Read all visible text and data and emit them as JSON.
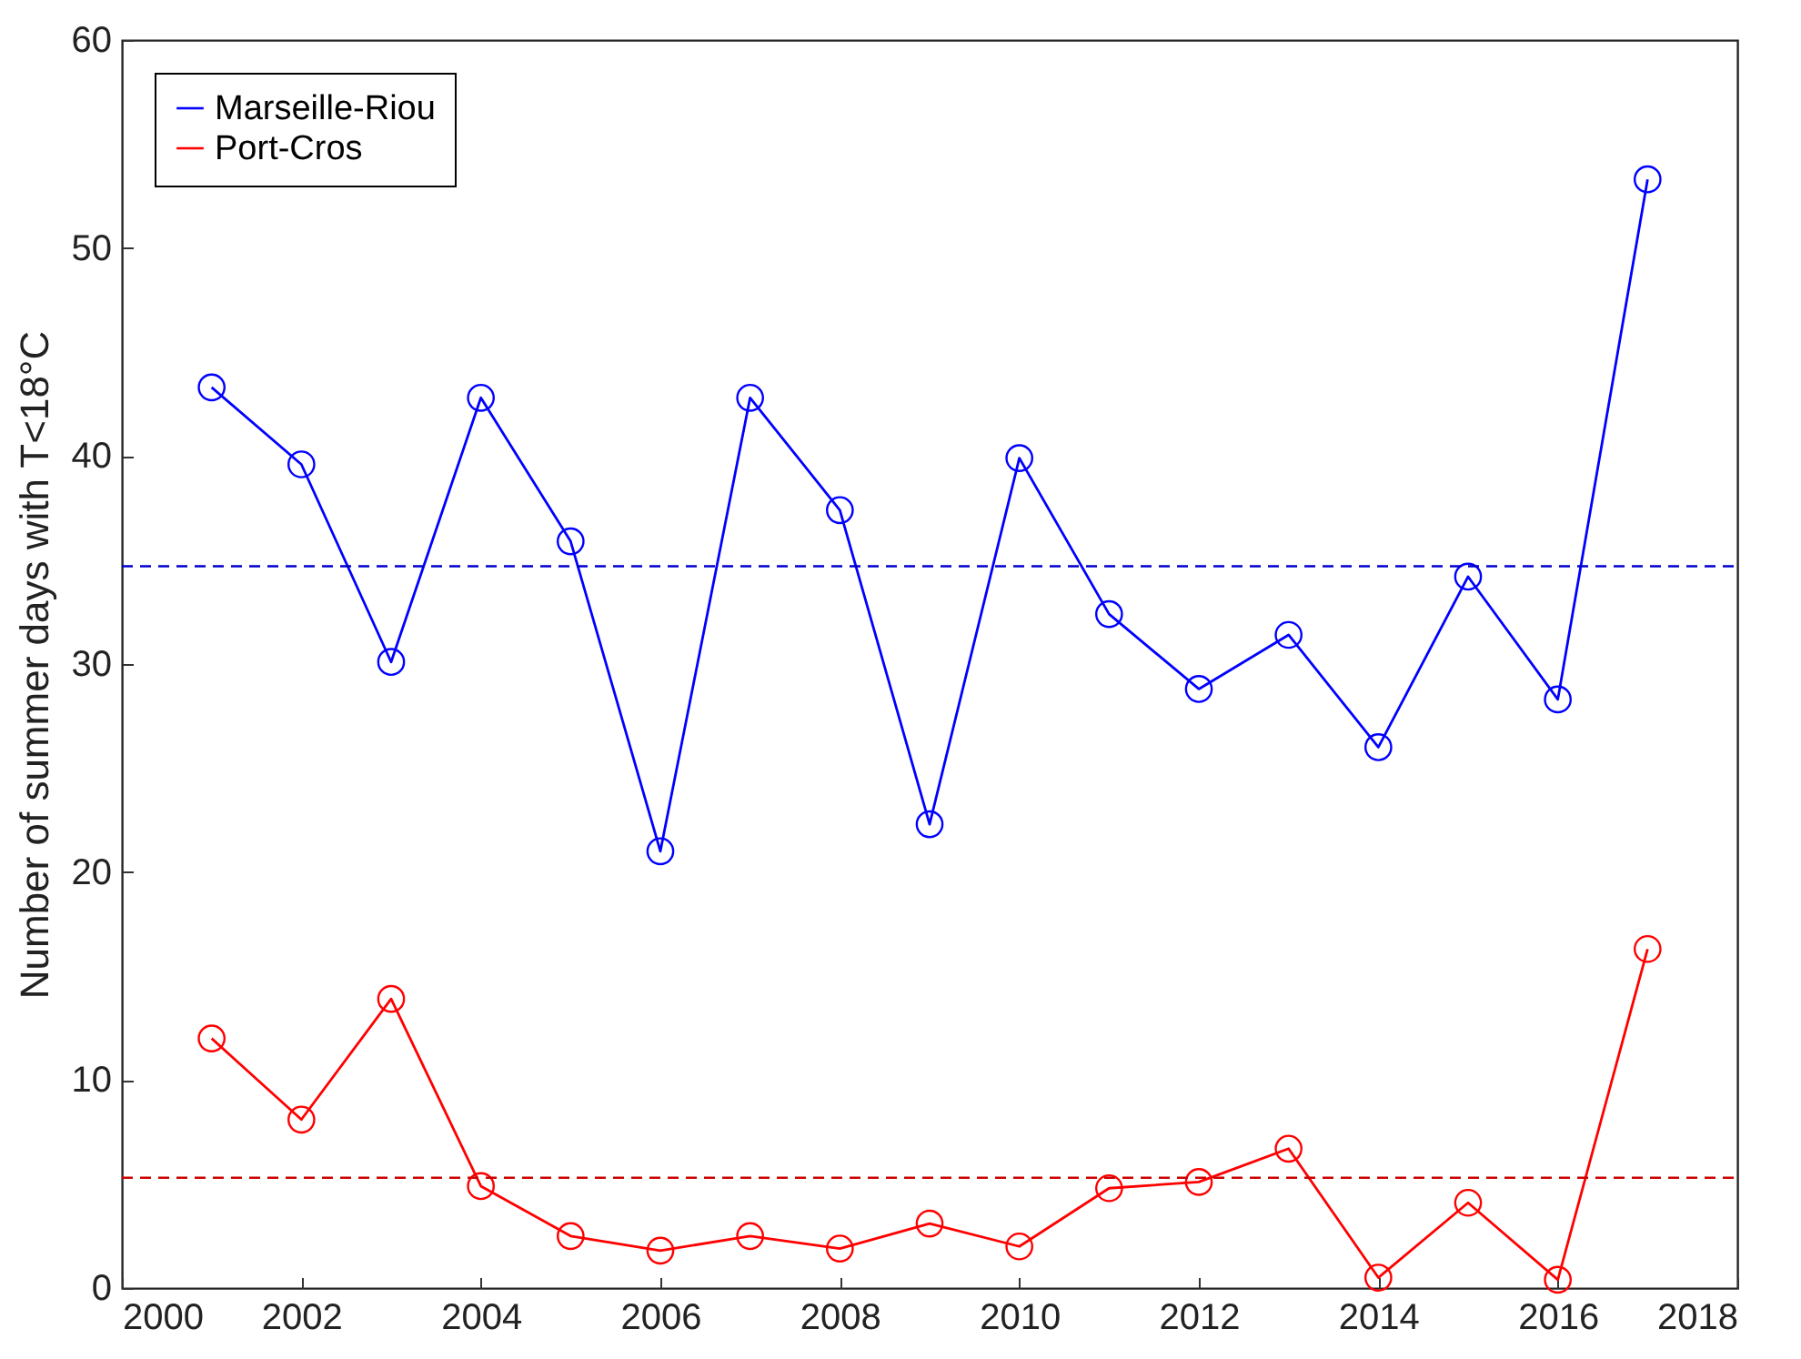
{
  "chart_data": {
    "type": "line",
    "ylabel": "Number of summer days with T<18°C",
    "x": [
      2001,
      2002,
      2003,
      2004,
      2005,
      2006,
      2007,
      2008,
      2009,
      2010,
      2011,
      2012,
      2013,
      2014,
      2015,
      2016,
      2017
    ],
    "series": [
      {
        "name": "Marseille-Riou",
        "color": "#0000ff",
        "values": [
          43.3,
          39.6,
          30.1,
          42.8,
          35.9,
          21.0,
          42.8,
          37.4,
          22.3,
          39.9,
          32.4,
          28.8,
          31.4,
          26.0,
          34.2,
          28.3,
          53.3
        ]
      },
      {
        "name": "Port-Cros",
        "color": "#ff0000",
        "values": [
          12.0,
          8.1,
          13.9,
          4.9,
          2.5,
          1.8,
          2.5,
          1.9,
          3.1,
          2.0,
          4.8,
          5.1,
          6.7,
          0.5,
          4.1,
          0.4,
          16.3
        ]
      }
    ],
    "ref_lines": [
      {
        "axis": "y",
        "value": 34.7,
        "color": "#0000cc",
        "line_style": "dashed"
      },
      {
        "axis": "y",
        "value": 5.3,
        "color": "#cc0000",
        "line_style": "dashed"
      }
    ],
    "xlim": [
      2000,
      2018
    ],
    "xticks": [
      2000,
      2002,
      2004,
      2006,
      2008,
      2010,
      2012,
      2014,
      2016,
      2018
    ],
    "ylim": [
      0,
      60
    ],
    "yticks": [
      0,
      10,
      20,
      30,
      40,
      50,
      60
    ],
    "marker": "circle",
    "line_style": "solid",
    "legend": "top left",
    "grid": false
  }
}
